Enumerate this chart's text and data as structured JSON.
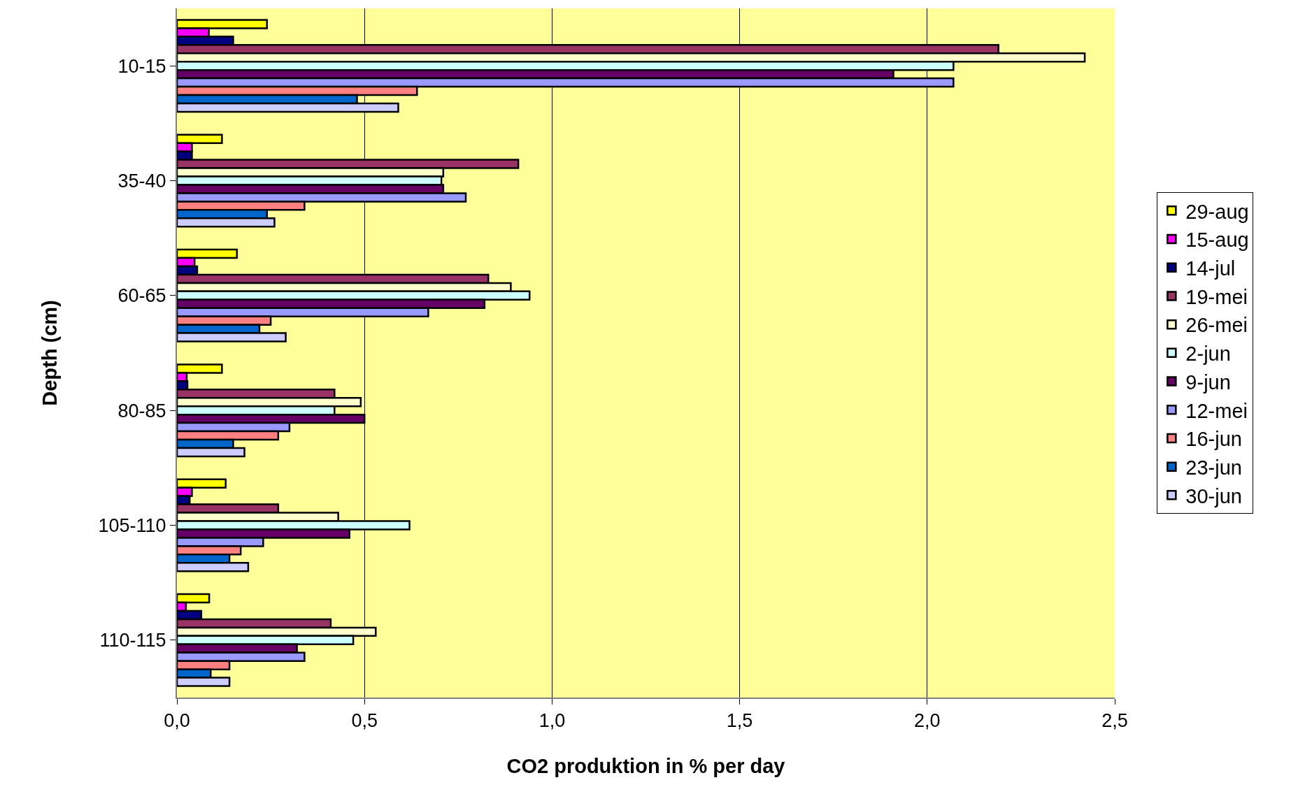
{
  "chart_data": {
    "type": "bar",
    "orientation": "horizontal",
    "xlabel": "CO2 produktion in % per day",
    "ylabel": "Depth (cm)",
    "categories": [
      "10-15",
      "35-40",
      "60-65",
      "80-85",
      "105-110",
      "110-115"
    ],
    "series": [
      {
        "name": "29-aug",
        "color": "#ffff00",
        "values": [
          0.24,
          0.12,
          0.16,
          0.12,
          0.13,
          0.086
        ]
      },
      {
        "name": "15-aug",
        "color": "#ff00ff",
        "values": [
          0.085,
          0.04,
          0.047,
          0.026,
          0.04,
          0.024
        ]
      },
      {
        "name": "14-jul",
        "color": "#000080",
        "values": [
          0.15,
          0.04,
          0.054,
          0.028,
          0.034,
          0.065
        ]
      },
      {
        "name": "19-mei",
        "color": "#993366",
        "values": [
          2.19,
          0.91,
          0.83,
          0.42,
          0.27,
          0.41
        ]
      },
      {
        "name": "26-mei",
        "color": "#ffffcc",
        "values": [
          2.42,
          0.71,
          0.89,
          0.49,
          0.43,
          0.53
        ]
      },
      {
        "name": "2-jun",
        "color": "#ccffff",
        "values": [
          2.07,
          0.705,
          0.94,
          0.42,
          0.62,
          0.47
        ]
      },
      {
        "name": "9-jun",
        "color": "#660066",
        "values": [
          1.91,
          0.71,
          0.82,
          0.5,
          0.46,
          0.32
        ]
      },
      {
        "name": "12-mei",
        "color": "#9999ff",
        "values": [
          2.07,
          0.77,
          0.67,
          0.3,
          0.23,
          0.34
        ]
      },
      {
        "name": "16-jun",
        "color": "#ff8080",
        "values": [
          0.64,
          0.34,
          0.25,
          0.27,
          0.17,
          0.14
        ]
      },
      {
        "name": "23-jun",
        "color": "#0066cc",
        "values": [
          0.48,
          0.24,
          0.22,
          0.15,
          0.14,
          0.09
        ]
      },
      {
        "name": "30-jun",
        "color": "#ccccff",
        "values": [
          0.59,
          0.26,
          0.29,
          0.18,
          0.19,
          0.14
        ]
      }
    ],
    "xlim": [
      0,
      2.5
    ],
    "xticks": [
      {
        "value": 0,
        "label": "0,0"
      },
      {
        "value": 0.5,
        "label": "0,5"
      },
      {
        "value": 1,
        "label": "1,0"
      },
      {
        "value": 1.5,
        "label": "1,5"
      },
      {
        "value": 2,
        "label": "2,0"
      },
      {
        "value": 2.5,
        "label": "2,5"
      }
    ],
    "grid": "x",
    "legend": "right"
  }
}
